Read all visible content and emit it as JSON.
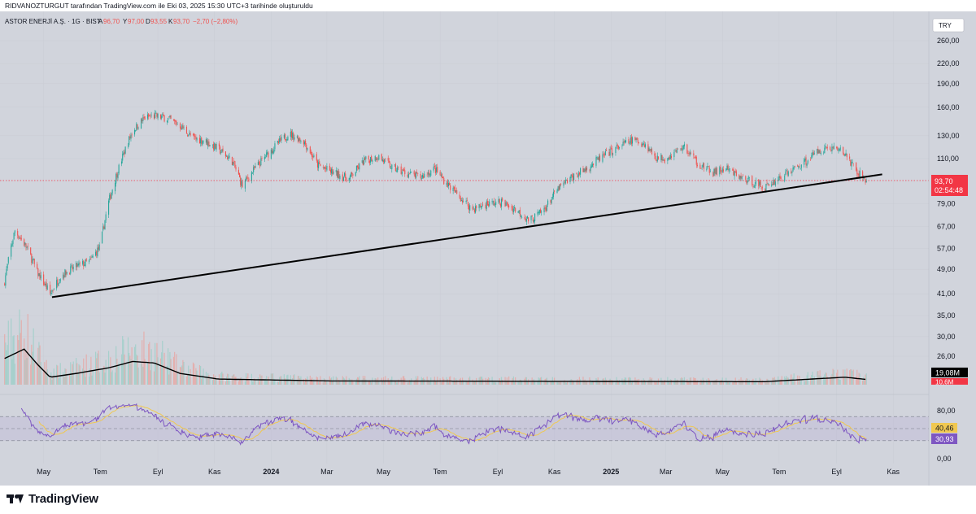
{
  "header": {
    "created_by": "RIDVANOZTURGUT tarafından TradingView.com ile Eki 03, 2025 15:30 UTC+3 tarihinde oluşturuldu"
  },
  "legend": {
    "symbol": "ASTOR ENERJİ A.Ş. · 1G · BIST",
    "open_label": "A",
    "open": "96,70",
    "high_label": "Y",
    "high": "97,00",
    "low_label": "D",
    "low": "93,55",
    "close_label": "K",
    "close": "93,70",
    "change": "−2,70 (−2,80%)"
  },
  "currency_badge": "TRY",
  "colors": {
    "background": "#d1d4dc",
    "up": "#26a69a",
    "down": "#ef5350",
    "trendline": "#000000",
    "rsi": "#7e57c2",
    "rsi_ma": "#f0c850",
    "price_badge": "#f23645",
    "volume_ma": "#000000"
  },
  "price_badges": {
    "last_price": "93,70",
    "countdown": "02:54:48",
    "volume_ma": "19,08M",
    "volume": "10,6M",
    "rsi_ma": "40,46",
    "rsi": "30,93"
  },
  "footer": {
    "logo_text": "TradingView"
  },
  "chart_data": {
    "type": "candlestick",
    "price_axis": {
      "scale": "log",
      "ticks": [
        "260,00",
        "220,00",
        "190,00",
        "160,00",
        "130,00",
        "110,00",
        "79,00",
        "67,00",
        "57,00",
        "49,00",
        "41,00",
        "35,00",
        "30,00",
        "26,00"
      ],
      "tick_values": [
        260,
        220,
        190,
        160,
        130,
        110,
        79,
        67,
        57,
        49,
        41,
        35,
        30,
        26
      ]
    },
    "time_axis": {
      "ticks": [
        "May",
        "Tem",
        "Eyl",
        "Kas",
        "2024",
        "Mar",
        "May",
        "Tem",
        "Eyl",
        "Kas",
        "2025",
        "Mar",
        "May",
        "Tem",
        "Eyl",
        "Kas"
      ],
      "bold": [
        false,
        false,
        false,
        false,
        true,
        false,
        false,
        false,
        false,
        false,
        true,
        false,
        false,
        false,
        false,
        false
      ]
    },
    "price_path": [
      [
        "2023-03-20",
        45
      ],
      [
        "2023-03-31",
        65
      ],
      [
        "2023-04-12",
        58
      ],
      [
        "2023-04-24",
        48
      ],
      [
        "2023-05-08",
        41
      ],
      [
        "2023-05-20",
        47
      ],
      [
        "2023-06-05",
        50
      ],
      [
        "2023-06-20",
        52
      ],
      [
        "2023-07-01",
        58
      ],
      [
        "2023-07-10",
        80
      ],
      [
        "2023-07-22",
        105
      ],
      [
        "2023-08-05",
        135
      ],
      [
        "2023-08-18",
        148
      ],
      [
        "2023-08-28",
        150
      ],
      [
        "2023-09-10",
        148
      ],
      [
        "2023-09-25",
        140
      ],
      [
        "2023-10-08",
        128
      ],
      [
        "2023-10-22",
        125
      ],
      [
        "2023-11-05",
        118
      ],
      [
        "2023-11-20",
        108
      ],
      [
        "2023-12-01",
        90
      ],
      [
        "2023-12-12",
        100
      ],
      [
        "2024-01-05",
        120
      ],
      [
        "2024-01-20",
        132
      ],
      [
        "2024-02-05",
        125
      ],
      [
        "2024-02-20",
        105
      ],
      [
        "2024-03-05",
        100
      ],
      [
        "2024-03-25",
        95
      ],
      [
        "2024-04-10",
        108
      ],
      [
        "2024-04-25",
        112
      ],
      [
        "2024-05-10",
        103
      ],
      [
        "2024-05-25",
        99
      ],
      [
        "2024-06-10",
        96
      ],
      [
        "2024-06-25",
        102
      ],
      [
        "2024-07-05",
        94
      ],
      [
        "2024-07-20",
        84
      ],
      [
        "2024-08-05",
        76
      ],
      [
        "2024-08-20",
        79
      ],
      [
        "2024-09-05",
        80
      ],
      [
        "2024-09-20",
        76
      ],
      [
        "2024-10-05",
        70
      ],
      [
        "2024-10-20",
        75
      ],
      [
        "2024-11-05",
        88
      ],
      [
        "2024-11-20",
        96
      ],
      [
        "2024-12-05",
        102
      ],
      [
        "2024-12-20",
        110
      ],
      [
        "2025-01-10",
        120
      ],
      [
        "2025-01-25",
        126
      ],
      [
        "2025-02-05",
        123
      ],
      [
        "2025-02-20",
        110
      ],
      [
        "2025-03-05",
        112
      ],
      [
        "2025-03-20",
        120
      ],
      [
        "2025-04-05",
        106
      ],
      [
        "2025-04-20",
        99
      ],
      [
        "2025-05-05",
        102
      ],
      [
        "2025-05-20",
        96
      ],
      [
        "2025-06-05",
        92
      ],
      [
        "2025-06-15",
        89
      ],
      [
        "2025-06-28",
        94
      ],
      [
        "2025-07-15",
        101
      ],
      [
        "2025-07-30",
        108
      ],
      [
        "2025-08-15",
        118
      ],
      [
        "2025-08-30",
        119
      ],
      [
        "2025-09-10",
        114
      ],
      [
        "2025-09-22",
        100
      ],
      [
        "2025-10-03",
        93.7
      ]
    ],
    "trendline": {
      "from": [
        "2023-05-10",
        40
      ],
      "to": [
        "2025-10-20",
        98
      ]
    },
    "last_price": 93.7,
    "volume_panel": {
      "ma_label": "19,08M",
      "volume_label": "10,6M",
      "relative_level_path": [
        [
          "2023-03-20",
          0.7
        ],
        [
          "2023-04-10",
          0.95
        ],
        [
          "2023-04-24",
          0.55
        ],
        [
          "2023-05-08",
          0.2
        ],
        [
          "2023-06-05",
          0.3
        ],
        [
          "2023-07-10",
          0.45
        ],
        [
          "2023-08-05",
          0.62
        ],
        [
          "2023-08-28",
          0.58
        ],
        [
          "2023-09-25",
          0.3
        ],
        [
          "2023-11-05",
          0.15
        ],
        [
          "2024-03-05",
          0.1
        ],
        [
          "2025-06-15",
          0.08
        ],
        [
          "2025-09-10",
          0.2
        ],
        [
          "2025-10-03",
          0.14
        ]
      ]
    },
    "rsi_panel": {
      "ticks": [
        "80,00",
        "0,00"
      ],
      "tick_values": [
        80,
        0
      ],
      "bands": [
        70,
        50,
        30
      ],
      "rsi": 30.93,
      "rsi_ma": 40.46
    }
  }
}
